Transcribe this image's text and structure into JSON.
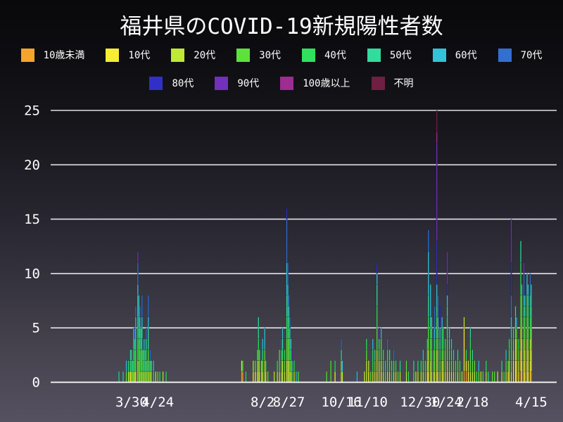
{
  "title": "福井県のCOVID-19新規陽性者数",
  "legend": {
    "row1_labels": [
      "10歳未満",
      "10代",
      "20代",
      "30代",
      "40代",
      "50代",
      "60代",
      "70代"
    ],
    "row2_labels": [
      "80代",
      "90代",
      "100歳以上",
      "不明"
    ]
  },
  "chart_data": {
    "type": "bar",
    "stacked": true,
    "title": "福井県のCOVID-19新規陽性者数",
    "xlabel": "",
    "ylabel": "",
    "ylim": [
      0,
      25
    ],
    "yticks": [
      0,
      5,
      10,
      15,
      20,
      25
    ],
    "grid": "horizontal-white",
    "legend_position": "top",
    "age_groups": [
      "10歳未満",
      "10代",
      "20代",
      "30代",
      "40代",
      "50代",
      "60代",
      "70代",
      "80代",
      "90代",
      "100歳以上",
      "不明"
    ],
    "colors": {
      "10歳未満": "#F6A42B",
      "10代": "#F8ED33",
      "20代": "#BEE934",
      "30代": "#5CE23B",
      "40代": "#30E15F",
      "50代": "#31DC9D",
      "60代": "#32C2DA",
      "70代": "#336FD1",
      "80代": "#3030C8",
      "90代": "#7230BC",
      "100歳以上": "#9E2C93",
      "不明": "#6F1F42"
    },
    "x_axis": {
      "unit": "day-index (daily bars)",
      "ticks": [
        {
          "label": "3/30",
          "day": 12
        },
        {
          "label": "4/24",
          "day": 37
        },
        {
          "label": "8/2",
          "day": 137
        },
        {
          "label": "8/27",
          "day": 162
        },
        {
          "label": "10/16",
          "day": 212
        },
        {
          "label": "11/10",
          "day": 237
        },
        {
          "label": "12/30",
          "day": 287
        },
        {
          "label": "1/24",
          "day": 312
        },
        {
          "label": "2/18",
          "day": 337
        },
        {
          "label": "4/15",
          "day": 393
        }
      ]
    },
    "bars": [
      [
        0,
        {
          "50代": 1
        }
      ],
      [
        4,
        {
          "50代": 1
        }
      ],
      [
        7,
        {
          "30代": 1,
          "60代": 1
        }
      ],
      [
        9,
        {
          "20代": 1,
          "40代": 1
        }
      ],
      [
        10,
        {
          "30代": 1,
          "70代": 1
        }
      ],
      [
        11,
        {
          "10代": 1,
          "40代": 1,
          "50代": 1
        }
      ],
      [
        12,
        {
          "20代": 1,
          "40代": 1,
          "60代": 1
        }
      ],
      [
        13,
        {
          "30代": 1,
          "50代": 1
        }
      ],
      [
        14,
        {
          "20代": 1,
          "30代": 1,
          "40代": 1,
          "60代": 2
        }
      ],
      [
        15,
        {
          "20代": 1,
          "40代": 2,
          "50代": 1,
          "70代": 1
        }
      ],
      [
        16,
        {
          "10代": 1,
          "30代": 2,
          "50代": 2,
          "60代": 1,
          "70代": 1
        }
      ],
      [
        18,
        {
          "20代": 2,
          "30代": 2,
          "40代": 2,
          "50代": 2,
          "60代": 1,
          "70代": 2,
          "90代": 1
        }
      ],
      [
        19,
        {
          "30代": 2,
          "40代": 2,
          "50代": 1,
          "60代": 3
        }
      ],
      [
        20,
        {
          "20代": 1,
          "30代": 2,
          "40代": 1,
          "50代": 1,
          "60代": 1,
          "70代": 1
        }
      ],
      [
        21,
        {
          "30代": 1,
          "40代": 2,
          "50代": 2
        }
      ],
      [
        22,
        {
          "20代": 1,
          "30代": 2,
          "40代": 1,
          "50代": 1,
          "60代": 1,
          "70代": 2
        }
      ],
      [
        23,
        {
          "30代": 1,
          "40代": 1,
          "50代": 1,
          "80代": 1
        }
      ],
      [
        24,
        {
          "20代": 1,
          "40代": 2,
          "60代": 1
        }
      ],
      [
        25,
        {
          "30代": 1,
          "50代": 1,
          "60代": 1
        }
      ],
      [
        26,
        {
          "20代": 1,
          "30代": 1,
          "40代": 1,
          "50代": 1,
          "70代": 1
        }
      ],
      [
        27,
        {
          "40代": 1,
          "60代": 1
        }
      ],
      [
        28,
        {
          "20代": 1,
          "30代": 2,
          "50代": 2,
          "60代": 1,
          "70代": 2
        }
      ],
      [
        29,
        {
          "30代": 1,
          "60代": 1
        }
      ],
      [
        30,
        {
          "20代": 1,
          "40代": 1,
          "70代": 1
        }
      ],
      [
        31,
        {
          "30代": 1,
          "50代": 1
        }
      ],
      [
        33,
        {
          "40代": 1,
          "60代": 1
        }
      ],
      [
        35,
        {
          "20代": 1
        }
      ],
      [
        37,
        {
          "30代": 1
        }
      ],
      [
        39,
        {
          "50代": 1
        }
      ],
      [
        42,
        {
          "20代": 1
        }
      ],
      [
        45,
        {
          "40代": 1
        }
      ],
      [
        117,
        {
          "10歳未満": 1,
          "10代": 1
        }
      ],
      [
        118,
        {
          "10歳未満": 1,
          "30代": 1
        }
      ],
      [
        121,
        {
          "40代": 1
        }
      ],
      [
        128,
        {
          "10代": 1,
          "20代": 1
        }
      ],
      [
        130,
        {
          "10代": 1,
          "30代": 1
        }
      ],
      [
        132,
        {
          "20代": 1,
          "30代": 1,
          "40代": 1
        }
      ],
      [
        133,
        {
          "20代": 2,
          "30代": 1,
          "40代": 1,
          "50代": 2
        }
      ],
      [
        134,
        {
          "20代": 1,
          "30代": 1,
          "50代": 1
        }
      ],
      [
        136,
        {
          "20代": 2
        }
      ],
      [
        137,
        {
          "20代": 1,
          "30代": 1,
          "50代": 1,
          "60代": 1
        }
      ],
      [
        139,
        {
          "20代": 2,
          "30代": 1,
          "60代": 2
        }
      ],
      [
        140,
        {
          "20代": 1,
          "40代": 1
        }
      ],
      [
        142,
        {
          "30代": 1
        }
      ],
      [
        148,
        {
          "20代": 1
        }
      ],
      [
        151,
        {
          "20代": 1,
          "40代": 1
        }
      ],
      [
        153,
        {
          "20代": 1,
          "30代": 2
        }
      ],
      [
        155,
        {
          "20代": 1,
          "30代": 1,
          "50代": 1,
          "70代": 1
        }
      ],
      [
        156,
        {
          "20代": 2,
          "40代": 1,
          "50代": 1,
          "60代": 1
        }
      ],
      [
        158,
        {
          "20代": 1,
          "30代": 1,
          "40代": 1
        }
      ],
      [
        160,
        {
          "20代": 2,
          "30代": 2,
          "40代": 2,
          "50代": 2,
          "60代": 3,
          "70代": 4,
          "80代": 1
        }
      ],
      [
        161,
        {
          "20代": 2,
          "30代": 2,
          "40代": 2,
          "50代": 1,
          "60代": 2,
          "70代": 2
        }
      ],
      [
        162,
        {
          "20代": 2,
          "30代": 2,
          "40代": 1,
          "50代": 1,
          "60代": 1,
          "70代": 1
        }
      ],
      [
        163,
        {
          "20代": 1,
          "30代": 1,
          "40代": 1,
          "50代": 1,
          "60代": 1,
          "70代": 1
        }
      ],
      [
        164,
        {
          "20代": 1,
          "30代": 1,
          "40代": 1,
          "60代": 1
        }
      ],
      [
        165,
        {
          "30代": 1,
          "50代": 1,
          "90代": 1
        }
      ],
      [
        167,
        {
          "20代": 1,
          "40代": 1
        }
      ],
      [
        169,
        {
          "60代": 1
        }
      ],
      [
        171,
        {
          "30代": 1
        }
      ],
      [
        198,
        {
          "30代": 1
        }
      ],
      [
        202,
        {
          "30代": 2
        }
      ],
      [
        206,
        {
          "10代": 1,
          "40代": 1
        }
      ],
      [
        212,
        {
          "10代": 1,
          "20代": 1,
          "50代": 1,
          "70代": 1
        }
      ],
      [
        213,
        {
          "20代": 1,
          "60代": 1
        }
      ],
      [
        227,
        {
          "60代": 1
        }
      ],
      [
        234,
        {
          "20代": 1
        }
      ],
      [
        236,
        {
          "20代": 2,
          "30代": 1,
          "40代": 1
        }
      ],
      [
        238,
        {
          "10代": 1,
          "20代": 1
        }
      ],
      [
        240,
        {
          "30代": 1
        }
      ],
      [
        242,
        {
          "20代": 1,
          "40代": 2,
          "60代": 1
        }
      ],
      [
        244,
        {
          "20代": 1,
          "30代": 1,
          "50代": 1
        }
      ],
      [
        246,
        {
          "10代": 1,
          "20代": 2,
          "30代": 2,
          "40代": 2,
          "50代": 2,
          "60代": 1,
          "80代": 1
        }
      ],
      [
        248,
        {
          "20代": 2,
          "30代": 1,
          "50代": 1,
          "90代": 1
        }
      ],
      [
        250,
        {
          "10代": 1,
          "20代": 1,
          "30代": 2,
          "60代": 1
        }
      ],
      [
        252,
        {
          "20代": 1,
          "30代": 1,
          "40代": 1
        }
      ],
      [
        254,
        {
          "30代": 1,
          "60代": 1
        }
      ],
      [
        256,
        {
          "20代": 1,
          "40代": 2,
          "70代": 1
        }
      ],
      [
        258,
        {
          "20代": 1,
          "30代": 1,
          "50代": 1
        }
      ],
      [
        260,
        {
          "40代": 1,
          "50代": 1
        }
      ],
      [
        262,
        {
          "20代": 1,
          "30代": 1,
          "70代": 1
        }
      ],
      [
        264,
        {
          "20代": 1,
          "40代": 1
        }
      ],
      [
        266,
        {
          "30代": 1
        }
      ],
      [
        268,
        {
          "20代": 1,
          "50代": 1
        }
      ],
      [
        274,
        {
          "20代": 1,
          "30代": 1
        }
      ],
      [
        276,
        {
          "40代": 1
        }
      ],
      [
        281,
        {
          "30代": 1,
          "50代": 1
        }
      ],
      [
        283,
        {
          "20代": 1
        }
      ],
      [
        285,
        {
          "20代": 1,
          "40代": 1
        }
      ],
      [
        288,
        {
          "20代": 1,
          "50代": 1
        }
      ],
      [
        290,
        {
          "20代": 1,
          "30代": 1,
          "60代": 1
        }
      ],
      [
        292,
        {
          "30代": 1,
          "40代": 1
        }
      ],
      [
        294,
        {
          "10代": 1,
          "20代": 1,
          "30代": 1,
          "50代": 1
        }
      ],
      [
        295,
        {
          "10代": 1,
          "20代": 2,
          "30代": 2,
          "40代": 1,
          "50代": 2,
          "60代": 4,
          "70代": 2
        }
      ],
      [
        297,
        {
          "20代": 2,
          "30代": 2,
          "40代": 1,
          "50代": 1,
          "60代": 3
        }
      ],
      [
        298,
        {
          "20代": 1,
          "30代": 2,
          "40代": 1,
          "50代": 1,
          "60代": 1
        }
      ],
      [
        300,
        {
          "20代": 1,
          "30代": 1,
          "40代": 1,
          "70代": 2
        }
      ],
      [
        301,
        {
          "20代": 1,
          "30代": 2,
          "40代": 1,
          "60代": 1,
          "70代": 2
        }
      ],
      [
        303,
        {
          "10代": 1,
          "20代": 2,
          "30代": 1,
          "40代": 2,
          "50代": 1,
          "60代": 2,
          "80代": 4,
          "90代": 9,
          "100歳以上": 1,
          "不明": 2
        }
      ],
      [
        304,
        {
          "20代": 1,
          "30代": 2,
          "40代": 1,
          "50代": 1,
          "60代": 1,
          "70代": 2
        }
      ],
      [
        306,
        {
          "20代": 1,
          "30代": 1,
          "40代": 1,
          "50代": 1,
          "60代": 1,
          "80代": 2
        }
      ],
      [
        308,
        {
          "20代": 2,
          "30代": 1,
          "40代": 2,
          "60代": 1
        }
      ],
      [
        309,
        {
          "10代": 1,
          "20代": 1,
          "30代": 1,
          "40代": 2
        }
      ],
      [
        311,
        {
          "20代": 1,
          "30代": 2,
          "40代": 1
        }
      ],
      [
        313,
        {
          "10代": 1,
          "20代": 1,
          "30代": 2,
          "40代": 2,
          "50代": 1,
          "60代": 1,
          "80代": 1,
          "90代": 3
        }
      ],
      [
        315,
        {
          "20代": 1,
          "30代": 1,
          "40代": 1,
          "50代": 1,
          "60代": 1
        }
      ],
      [
        317,
        {
          "20代": 1,
          "30代": 1,
          "40代": 1,
          "60代": 1
        }
      ],
      [
        319,
        {
          "20代": 1,
          "30代": 1,
          "60代": 1
        }
      ],
      [
        321,
        {
          "30代": 1,
          "40代": 1
        }
      ],
      [
        323,
        {
          "20代": 1,
          "30代": 1,
          "50代": 1
        }
      ],
      [
        325,
        {
          "30代": 1,
          "40代": 1
        }
      ],
      [
        327,
        {
          "20代": 1
        }
      ],
      [
        329,
        {
          "10歳未満": 1,
          "10代": 4,
          "20代": 1
        }
      ],
      [
        331,
        {
          "10歳未満": 1,
          "10代": 1,
          "40代": 1
        }
      ],
      [
        333,
        {
          "10代": 1,
          "20代": 1
        }
      ],
      [
        335,
        {
          "20代": 1,
          "30代": 2,
          "40代": 1,
          "50代": 1
        }
      ],
      [
        337,
        {
          "20代": 1,
          "30代": 1,
          "50代": 1
        }
      ],
      [
        339,
        {
          "20代": 1,
          "30代": 1
        }
      ],
      [
        341,
        {
          "40代": 1
        }
      ],
      [
        343,
        {
          "30代": 1,
          "60代": 1
        }
      ],
      [
        345,
        {
          "20代": 1
        }
      ],
      [
        347,
        {
          "30代": 1
        }
      ],
      [
        350,
        {
          "20代": 1,
          "40代": 1
        }
      ],
      [
        352,
        {
          "50代": 1
        }
      ],
      [
        356,
        {
          "30代": 1
        }
      ],
      [
        358,
        {
          "30代": 1
        }
      ],
      [
        361,
        {
          "20代": 1
        }
      ],
      [
        365,
        {
          "20代": 1,
          "50代": 1
        }
      ],
      [
        367,
        {
          "40代": 1
        }
      ],
      [
        369,
        {
          "20代": 1,
          "30代": 1,
          "60代": 1
        }
      ],
      [
        371,
        {
          "10代": 1,
          "30代": 1
        }
      ],
      [
        372,
        {
          "20代": 2,
          "30代": 1,
          "40代": 1
        }
      ],
      [
        374,
        {
          "20代": 1,
          "30代": 1,
          "40代": 2,
          "60代": 2,
          "70代": 2,
          "80代": 3,
          "90代": 4
        }
      ],
      [
        376,
        {
          "10代": 2,
          "20代": 1,
          "30代": 1,
          "40代": 1
        }
      ],
      [
        378,
        {
          "10代": 2,
          "20代": 2,
          "30代": 1,
          "40代": 1,
          "50代": 1
        }
      ],
      [
        379,
        {
          "10代": 2,
          "20代": 2,
          "30代": 1,
          "60代": 1
        }
      ],
      [
        381,
        {
          "10代": 1,
          "20代": 1,
          "30代": 1,
          "40代": 1
        }
      ],
      [
        383,
        {
          "10歳未満": 1,
          "10代": 2,
          "20代": 2,
          "30代": 3,
          "40代": 3,
          "50代": 2
        }
      ],
      [
        384,
        {
          "10代": 2,
          "20代": 2,
          "30代": 2,
          "40代": 2,
          "60代": 1
        }
      ],
      [
        386,
        {
          "10代": 2,
          "20代": 2,
          "30代": 2,
          "50代": 1,
          "60代": 1,
          "70代": 2,
          "90代": 1
        }
      ],
      [
        387,
        {
          "10代": 1,
          "20代": 2,
          "30代": 2,
          "40代": 1,
          "50代": 1,
          "60代": 1
        }
      ],
      [
        389,
        {
          "10代": 2,
          "20代": 2,
          "30代": 2,
          "40代": 2,
          "60代": 2
        }
      ],
      [
        390,
        {
          "10代": 1,
          "20代": 2,
          "30代": 2,
          "40代": 2,
          "50代": 1,
          "60代": 1
        }
      ],
      [
        392,
        {
          "10代": 2,
          "20代": 2,
          "40代": 2,
          "60代": 2,
          "70代": 2
        }
      ],
      [
        393,
        {
          "10歳未満": 1,
          "10代": 2,
          "20代": 2,
          "30代": 2,
          "40代": 2
        }
      ]
    ]
  }
}
